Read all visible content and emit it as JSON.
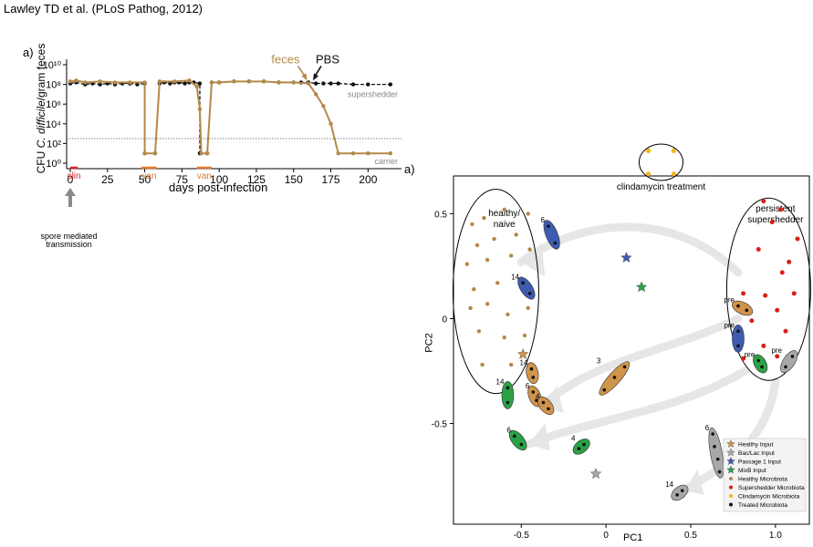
{
  "citation": "Lawley TD et al. (PLoS Pathog, 2012)",
  "panel_letters": [
    "a)",
    "a)"
  ],
  "annotations": {
    "feces": "feces",
    "pbs": "PBS",
    "supershedder": "supershedder",
    "carrier": "carrier",
    "clin": "clin",
    "van": "van",
    "spore": [
      "spore mediated",
      "transmission"
    ],
    "clindamycin_treatment": "clindamycin treatment",
    "healthy_naive": [
      "healthy/",
      "naive"
    ],
    "persistent_supershedder": [
      "persistent",
      "supershedder"
    ]
  },
  "colors": {
    "brown": "#b5884a",
    "black": "#111111",
    "red": "#d91e18",
    "gray_text": "#888888",
    "orange_bar": "#e07a2f",
    "clin_red": "#d62828",
    "blue": "#3d5bb0",
    "green": "#2aa146",
    "gray": "#a8a8a8",
    "tan": "#d1944b",
    "yellow": "#f2b51c",
    "arrow_gray": "#e6e6e6"
  },
  "chart_data": [
    {
      "type": "line",
      "xlabel": "days post-infection",
      "ylabel_prefix": "CFU ",
      "ylabel_italic": "C. difficile",
      "ylabel_suffix": "/gram feces",
      "xlim": [
        0,
        220
      ],
      "ylim_log10": [
        0,
        10
      ],
      "xticks": [
        0,
        25,
        50,
        75,
        100,
        125,
        150,
        175,
        200
      ],
      "yticks": [
        "10⁰",
        "10²",
        "10⁴",
        "10⁶",
        "10⁸",
        "10¹⁰"
      ],
      "detection_limit_log10": 2.5,
      "series": [
        {
          "name": "supershedder",
          "x": [
            0,
            4,
            10,
            15,
            20,
            25,
            30,
            35,
            40,
            45,
            50,
            50,
            57,
            60,
            63,
            67,
            70,
            73,
            77,
            80,
            83,
            87,
            87,
            92,
            95,
            100,
            110,
            120,
            130,
            140,
            150,
            155,
            160,
            165,
            170,
            175,
            180,
            190,
            200,
            215
          ],
          "y_log10": [
            8.1,
            8.2,
            8.0,
            8.1,
            8.0,
            8.1,
            8.0,
            8.1,
            8.1,
            8.0,
            8.1,
            1.0,
            1.0,
            8.1,
            8.2,
            8.1,
            8.2,
            8.2,
            8.1,
            8.2,
            8.2,
            8.1,
            1.0,
            1.0,
            8.2,
            8.2,
            8.3,
            8.3,
            8.3,
            8.2,
            8.2,
            8.2,
            8.2,
            8.1,
            8.1,
            8.1,
            8.1,
            8.0,
            8.0,
            8.0
          ]
        },
        {
          "name": "carrier",
          "x": [
            0,
            4,
            10,
            20,
            30,
            40,
            50,
            50,
            57,
            60,
            70,
            80,
            85,
            87,
            88,
            92,
            95,
            100,
            110,
            120,
            130,
            140,
            150,
            160,
            165,
            170,
            175,
            180,
            190,
            200,
            215
          ],
          "y_log10": [
            8.3,
            8.4,
            8.2,
            8.3,
            8.2,
            8.2,
            8.2,
            1.0,
            1.0,
            8.3,
            8.3,
            8.4,
            7.8,
            5.5,
            1.0,
            1.0,
            8.2,
            8.2,
            8.3,
            8.3,
            8.3,
            8.2,
            8.2,
            8.1,
            7.0,
            5.8,
            4.0,
            1.0,
            1.0,
            1.0,
            1.0
          ]
        }
      ],
      "treatment_bars": [
        {
          "label": "clin",
          "x": [
            0,
            5
          ]
        },
        {
          "label": "van",
          "x": [
            48,
            58
          ]
        },
        {
          "label": "van",
          "x": [
            85,
            95
          ]
        }
      ],
      "arrows": [
        {
          "label": "feces",
          "x": 159
        },
        {
          "label": "PBS",
          "x": 163
        }
      ]
    },
    {
      "type": "scatter",
      "xlabel": "PC1",
      "ylabel": "PC2",
      "xlim": [
        -0.9,
        1.2
      ],
      "ylim": [
        -0.98,
        0.68
      ],
      "xticks": [
        -0.5,
        0,
        0.5,
        1.0
      ],
      "xtick_labels": [
        "-0.5",
        "0",
        "0.5",
        "1.0"
      ],
      "yticks": [
        -0.5,
        0,
        0.5
      ],
      "ytick_labels": [
        "-0.5",
        "0",
        "0.5"
      ],
      "legend_position": "bottom-right",
      "legend": [
        {
          "label": "Healthy Input",
          "marker": "star",
          "color": "#d1944b"
        },
        {
          "label": "Bac/Lac Input",
          "marker": "star",
          "color": "#a8a8a8"
        },
        {
          "label": "Passage 1 Input",
          "marker": "star",
          "color": "#3d5bb0"
        },
        {
          "label": "MixB Input",
          "marker": "star",
          "color": "#2aa146"
        },
        {
          "label": "Healthy Microbiota",
          "marker": "dot",
          "color": "#b5884a"
        },
        {
          "label": "Supershedder Microbiota",
          "marker": "dot",
          "color": "#d91e18"
        },
        {
          "label": "Clindamycin Microbiota",
          "marker": "dot",
          "color": "#f2b51c"
        },
        {
          "label": "Treated Microbiota",
          "marker": "dot",
          "color": "#111111"
        }
      ],
      "healthy_points": [
        [
          -0.79,
          0.45
        ],
        [
          -0.72,
          0.48
        ],
        [
          -0.6,
          0.52
        ],
        [
          -0.46,
          0.5
        ],
        [
          -0.76,
          0.35
        ],
        [
          -0.66,
          0.38
        ],
        [
          -0.53,
          0.4
        ],
        [
          -0.82,
          0.26
        ],
        [
          -0.7,
          0.28
        ],
        [
          -0.56,
          0.3
        ],
        [
          -0.45,
          0.33
        ],
        [
          -0.78,
          0.14
        ],
        [
          -0.64,
          0.17
        ],
        [
          -0.5,
          0.19
        ],
        [
          -0.8,
          0.05
        ],
        [
          -0.7,
          0.07
        ],
        [
          -0.58,
          0.02
        ],
        [
          -0.46,
          0.05
        ],
        [
          -0.75,
          -0.06
        ],
        [
          -0.6,
          -0.09
        ],
        [
          -0.48,
          -0.08
        ],
        [
          -0.73,
          -0.22
        ],
        [
          -0.56,
          -0.22
        ]
      ],
      "supershedder_points": [
        [
          0.93,
          0.56
        ],
        [
          1.03,
          0.52
        ],
        [
          0.98,
          0.46
        ],
        [
          1.13,
          0.38
        ],
        [
          1.08,
          0.27
        ],
        [
          0.9,
          0.33
        ],
        [
          1.04,
          0.22
        ],
        [
          0.81,
          0.12
        ],
        [
          0.94,
          0.11
        ],
        [
          1.11,
          0.12
        ],
        [
          1.01,
          0.04
        ],
        [
          0.76,
          0.07
        ],
        [
          0.86,
          -0.01
        ],
        [
          1.06,
          -0.06
        ],
        [
          0.93,
          -0.13
        ],
        [
          1.01,
          -0.18
        ],
        [
          0.81,
          -0.19
        ]
      ],
      "clindamycin_points": [
        [
          0.25,
          0.8
        ],
        [
          0.4,
          0.8
        ],
        [
          0.25,
          0.69
        ],
        [
          0.4,
          0.69
        ]
      ],
      "input_stars": [
        {
          "label": "Healthy Input",
          "x": -0.49,
          "y": -0.17,
          "color": "#d1944b"
        },
        {
          "label": "Bac/Lac Input",
          "x": -0.06,
          "y": -0.74,
          "color": "#a8a8a8"
        },
        {
          "label": "Passage 1 Input",
          "x": 0.12,
          "y": 0.29,
          "color": "#3d5bb0"
        },
        {
          "label": "MixB Input",
          "x": 0.21,
          "y": 0.15,
          "color": "#2aa146"
        }
      ],
      "treated_groups": [
        {
          "label": "6",
          "color": "#3d5bb0",
          "x": [
            -0.34,
            -0.3
          ],
          "y": [
            0.44,
            0.36
          ]
        },
        {
          "label": "14",
          "color": "#3d5bb0",
          "x": [
            -0.49,
            -0.45
          ],
          "y": [
            0.17,
            0.12
          ]
        },
        {
          "label": "14",
          "color": "#d1944b",
          "x": [
            -0.44,
            -0.43
          ],
          "y": [
            -0.24,
            -0.28
          ]
        },
        {
          "label": "14",
          "color": "#2aa146",
          "x": [
            -0.58,
            -0.58
          ],
          "y": [
            -0.33,
            -0.4
          ]
        },
        {
          "label": "6",
          "color": "#d1944b",
          "x": [
            -0.43,
            -0.41
          ],
          "y": [
            -0.35,
            -0.39
          ]
        },
        {
          "label": "4",
          "color": "#d1944b",
          "x": [
            -0.37,
            -0.34
          ],
          "y": [
            -0.4,
            -0.43
          ]
        },
        {
          "label": "6",
          "color": "#2aa146",
          "x": [
            -0.54,
            -0.5
          ],
          "y": [
            -0.56,
            -0.6
          ]
        },
        {
          "label": "3",
          "color": "#d1944b",
          "x": [
            -0.01,
            0.05,
            0.11
          ],
          "y": [
            -0.34,
            -0.28,
            -0.23
          ]
        },
        {
          "label": "4",
          "color": "#2aa146",
          "x": [
            -0.16,
            -0.13
          ],
          "y": [
            -0.62,
            -0.6
          ]
        },
        {
          "label": "6",
          "color": "#a8a8a8",
          "x": [
            0.63,
            0.64,
            0.66,
            0.67
          ],
          "y": [
            -0.55,
            -0.61,
            -0.67,
            -0.73
          ]
        },
        {
          "label": "14",
          "color": "#a8a8a8",
          "x": [
            0.42,
            0.45
          ],
          "y": [
            -0.84,
            -0.82
          ]
        },
        {
          "label": "pre",
          "color": "#3d5bb0",
          "x": [
            0.78,
            0.78
          ],
          "y": [
            -0.06,
            -0.13
          ]
        },
        {
          "label": "pre",
          "color": "#d1944b",
          "x": [
            0.78,
            0.83
          ],
          "y": [
            0.06,
            0.04
          ]
        },
        {
          "label": "pre",
          "color": "#2aa146",
          "x": [
            0.9,
            0.92
          ],
          "y": [
            -0.2,
            -0.23
          ]
        },
        {
          "label": "pre",
          "color": "#a8a8a8",
          "x": [
            1.06,
            1.1
          ],
          "y": [
            -0.23,
            -0.18
          ]
        }
      ]
    }
  ]
}
